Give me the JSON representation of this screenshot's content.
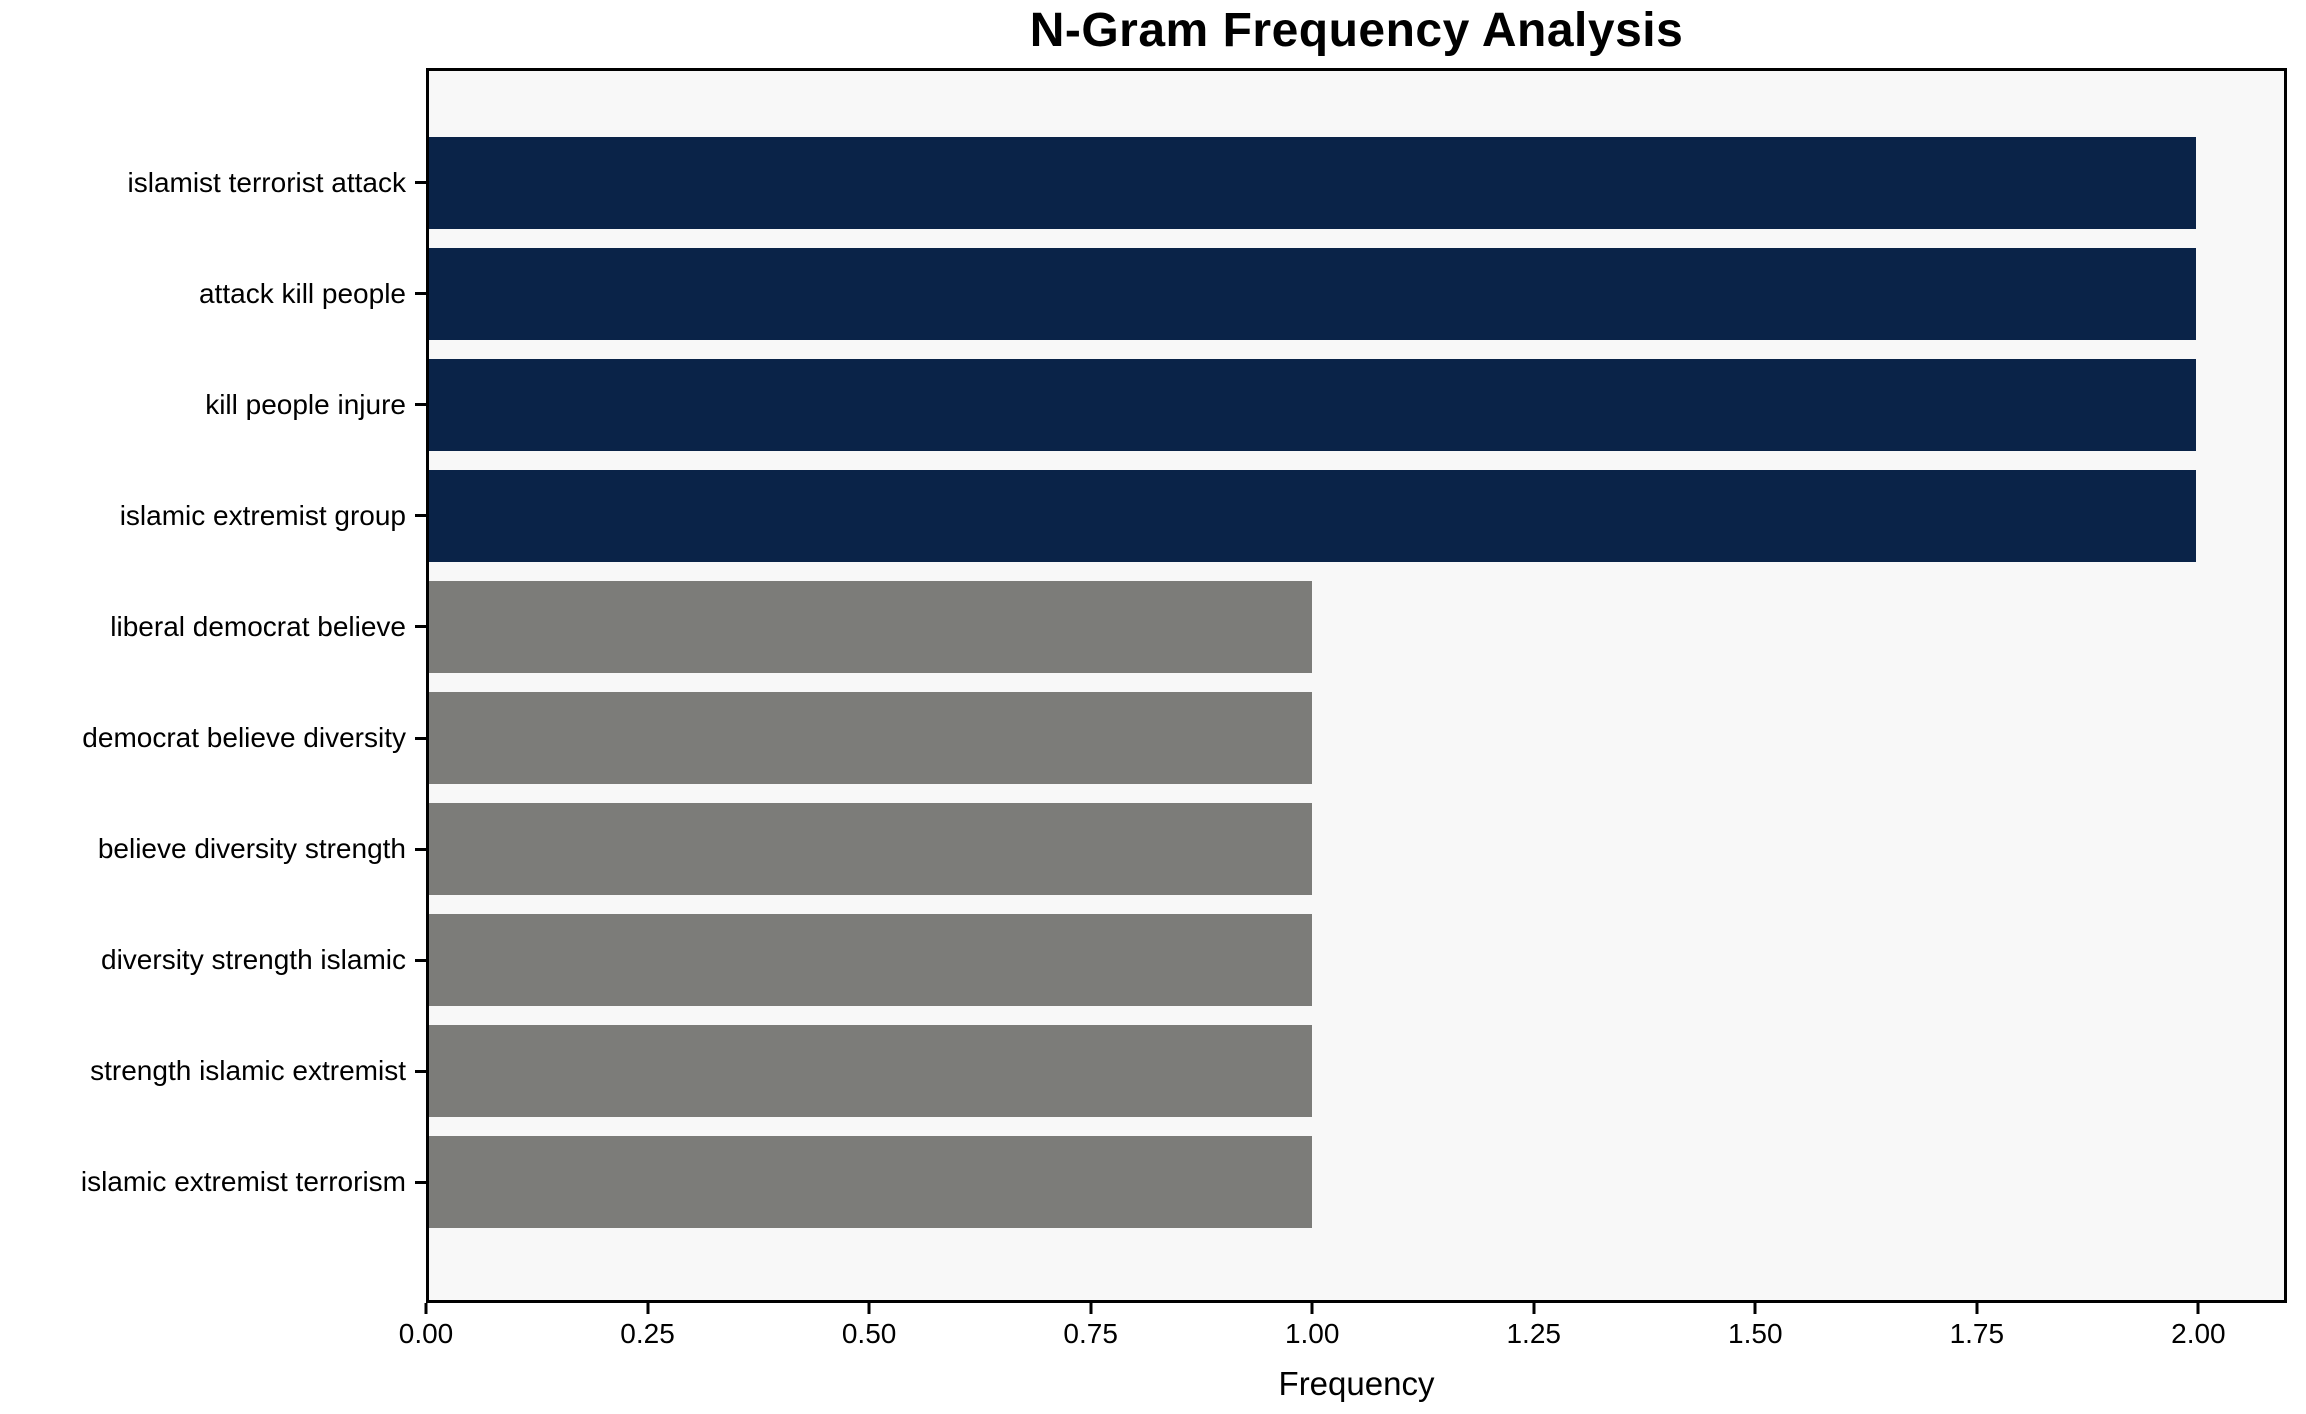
{
  "chart_data": {
    "type": "bar",
    "orientation": "horizontal",
    "title": "N-Gram Frequency Analysis",
    "xlabel": "Frequency",
    "ylabel": "",
    "categories": [
      "islamist terrorist attack",
      "attack kill people",
      "kill people injure",
      "islamic extremist group",
      "liberal democrat believe",
      "democrat believe diversity",
      "believe diversity strength",
      "diversity strength islamic",
      "strength islamic extremist",
      "islamic extremist terrorism"
    ],
    "values": [
      2,
      2,
      2,
      2,
      1,
      1,
      1,
      1,
      1,
      1
    ],
    "bar_colors": [
      "#0a2348",
      "#0a2348",
      "#0a2348",
      "#0a2348",
      "#7c7c79",
      "#7c7c79",
      "#7c7c79",
      "#7c7c79",
      "#7c7c79",
      "#7c7c79"
    ],
    "xticks": [
      "0.00",
      "0.25",
      "0.50",
      "0.75",
      "1.00",
      "1.25",
      "1.50",
      "1.75",
      "2.00"
    ],
    "xtick_values": [
      0,
      0.25,
      0.5,
      0.75,
      1.0,
      1.25,
      1.5,
      1.75,
      2.0
    ],
    "xlim": [
      0,
      2.1
    ],
    "grid": false,
    "legend": "none",
    "colors": {
      "highlight_bar": "#0a2348",
      "default_bar": "#7c7c79",
      "plot_background": "#f8f8f8",
      "figure_background": "#ffffff",
      "spine": "#000000",
      "text": "#000000"
    }
  }
}
